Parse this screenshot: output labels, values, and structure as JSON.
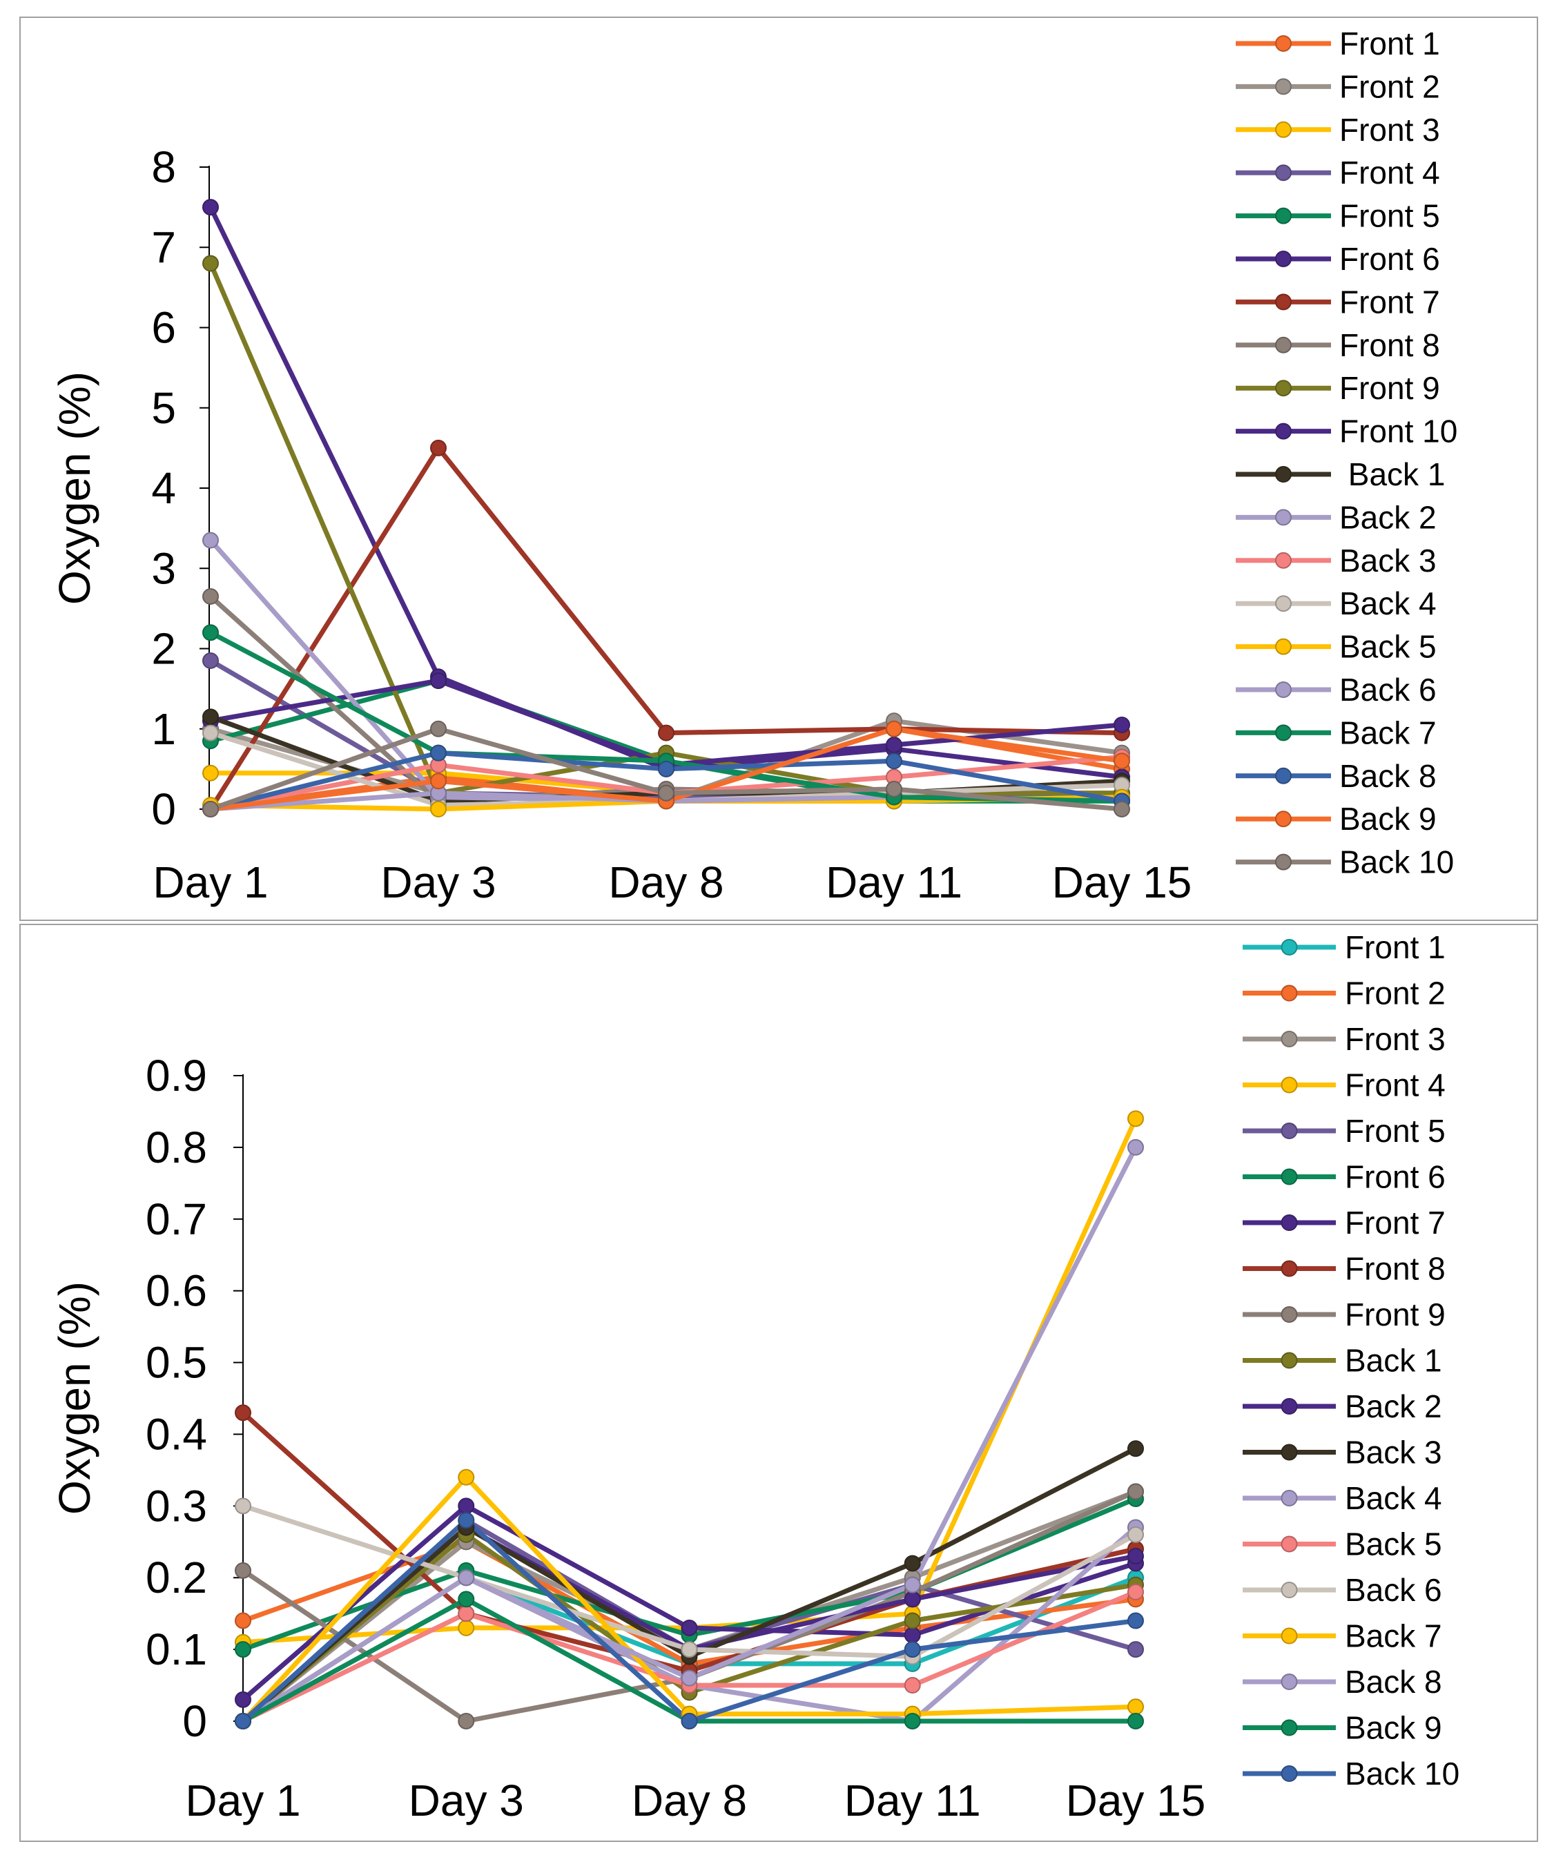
{
  "chart_data": [
    {
      "type": "line",
      "ylabel": "Oxygen (%)",
      "xlabel": "",
      "categories": [
        "Day 1",
        "Day 3",
        "Day 8",
        "Day 11",
        "Day 15"
      ],
      "ylim": [
        0,
        8
      ],
      "yticks": [
        "0",
        "1",
        "2",
        "3",
        "4",
        "5",
        "6",
        "7",
        "8"
      ],
      "legend_position": "right",
      "series": [
        {
          "name": "Front 1",
          "color": "#f46d2c",
          "values": [
            0.0,
            0.4,
            0.1,
            1.0,
            0.5
          ]
        },
        {
          "name": "Front 2",
          "color": "#9c928c",
          "values": [
            1.0,
            0.2,
            0.1,
            1.1,
            0.7
          ]
        },
        {
          "name": "Front 3",
          "color": "#ffc000",
          "values": [
            0.45,
            0.45,
            0.2,
            0.1,
            0.35
          ]
        },
        {
          "name": "Front 4",
          "color": "#6c5a9a",
          "values": [
            1.85,
            0.2,
            0.15,
            0.15,
            0.15
          ]
        },
        {
          "name": "Front 5",
          "color": "#0e8a5a",
          "values": [
            0.85,
            1.6,
            0.6,
            0.1,
            0.1
          ]
        },
        {
          "name": "Front 6",
          "color": "#4a2a86",
          "values": [
            7.5,
            1.65,
            0.5,
            0.75,
            0.4
          ]
        },
        {
          "name": "Front 7",
          "color": "#9e3526",
          "values": [
            0.0,
            4.5,
            0.95,
            1.0,
            0.95
          ]
        },
        {
          "name": "Front 8",
          "color": "#8c7f78",
          "values": [
            2.65,
            0.1,
            0.25,
            0.2,
            0.2
          ]
        },
        {
          "name": "Front 9",
          "color": "#7d7a24",
          "values": [
            6.8,
            0.2,
            0.7,
            0.2,
            0.2
          ]
        },
        {
          "name": "Front 10",
          "color": "#4a2a86",
          "values": [
            1.1,
            1.6,
            0.55,
            0.8,
            1.05
          ]
        },
        {
          "name": " Back 1",
          "color": "#3a3324",
          "values": [
            1.15,
            0.1,
            0.2,
            0.2,
            0.35
          ]
        },
        {
          "name": "Back 2",
          "color": "#a89cc8",
          "values": [
            3.35,
            0.15,
            0.1,
            0.1,
            0.15
          ]
        },
        {
          "name": "Back 3",
          "color": "#f48080",
          "values": [
            0.0,
            0.55,
            0.2,
            0.4,
            0.65
          ]
        },
        {
          "name": "Back 4",
          "color": "#cbc2ba",
          "values": [
            0.95,
            0.05,
            0.1,
            0.2,
            0.3
          ]
        },
        {
          "name": "Back 5",
          "color": "#ffc000",
          "values": [
            0.05,
            0.0,
            0.1,
            0.1,
            0.15
          ]
        },
        {
          "name": "Back 6",
          "color": "#a89cc8",
          "values": [
            0.0,
            0.2,
            0.1,
            0.15,
            0.1
          ]
        },
        {
          "name": "Back 7",
          "color": "#0e8a5a",
          "values": [
            2.2,
            0.7,
            0.6,
            0.15,
            0.1
          ]
        },
        {
          "name": "Back 8",
          "color": "#3a64a8",
          "values": [
            0.0,
            0.7,
            0.5,
            0.6,
            0.1
          ]
        },
        {
          "name": "Back 9",
          "color": "#f46d2c",
          "values": [
            0.0,
            0.35,
            0.1,
            1.0,
            0.6
          ]
        },
        {
          "name": "Back 10",
          "color": "#8c7f78",
          "values": [
            0.0,
            1.0,
            0.2,
            0.25,
            0.0
          ]
        }
      ]
    },
    {
      "type": "line",
      "ylabel": "Oxygen (%)",
      "xlabel": "",
      "categories": [
        "Day 1",
        "Day 3",
        "Day 8",
        "Day 11",
        "Day 15"
      ],
      "ylim": [
        0,
        0.9
      ],
      "yticks": [
        "0",
        "0.1",
        "0.2",
        "0.3",
        "0.4",
        "0.5",
        "0.6",
        "0.7",
        "0.8",
        "0.9"
      ],
      "legend_position": "right",
      "series": [
        {
          "name": "Front 1",
          "color": "#1fb8b8",
          "values": [
            0.0,
            0.2,
            0.08,
            0.08,
            0.2
          ]
        },
        {
          "name": "Front 2",
          "color": "#f46d2c",
          "values": [
            0.14,
            0.25,
            0.08,
            0.13,
            0.17
          ]
        },
        {
          "name": "Front 3",
          "color": "#9c928c",
          "values": [
            0.0,
            0.25,
            0.1,
            0.2,
            0.32
          ]
        },
        {
          "name": "Front 4",
          "color": "#ffc000",
          "values": [
            0.11,
            0.13,
            0.13,
            0.15,
            0.84
          ]
        },
        {
          "name": "Front 5",
          "color": "#6c5a9a",
          "values": [
            0.0,
            0.28,
            0.1,
            0.19,
            0.1
          ]
        },
        {
          "name": "Front 6",
          "color": "#0e8a5a",
          "values": [
            0.1,
            0.21,
            0.12,
            0.18,
            0.31
          ]
        },
        {
          "name": "Front 7",
          "color": "#4a2a86",
          "values": [
            0.03,
            0.3,
            0.13,
            0.12,
            0.22
          ]
        },
        {
          "name": "Front 8",
          "color": "#9e3526",
          "values": [
            0.43,
            0.15,
            0.07,
            0.17,
            0.24
          ]
        },
        {
          "name": "Front 9",
          "color": "#8c7f78",
          "values": [
            0.21,
            0.0,
            0.06,
            0.18,
            0.32
          ]
        },
        {
          "name": "Back 1",
          "color": "#7d7a24",
          "values": [
            0.0,
            0.26,
            0.04,
            0.14,
            0.19
          ]
        },
        {
          "name": "Back 2",
          "color": "#4a2a86",
          "values": [
            0.0,
            0.27,
            0.1,
            0.17,
            0.23
          ]
        },
        {
          "name": "Back 3",
          "color": "#3a3324",
          "values": [
            0.0,
            0.27,
            0.09,
            0.22,
            0.38
          ]
        },
        {
          "name": "Back 4",
          "color": "#a89cc8",
          "values": [
            0.0,
            0.2,
            0.05,
            0.0,
            0.27
          ]
        },
        {
          "name": "Back 5",
          "color": "#f48080",
          "values": [
            0.0,
            0.15,
            0.05,
            0.05,
            0.18
          ]
        },
        {
          "name": "Back 6",
          "color": "#cbc2ba",
          "values": [
            0.3,
            0.2,
            0.1,
            0.09,
            0.26
          ]
        },
        {
          "name": "Back 7",
          "color": "#ffc000",
          "values": [
            0.0,
            0.34,
            0.01,
            0.01,
            0.02
          ]
        },
        {
          "name": "Back 8",
          "color": "#a89cc8",
          "values": [
            0.0,
            0.2,
            0.06,
            0.19,
            0.8
          ]
        },
        {
          "name": "Back 9",
          "color": "#0e8a5a",
          "values": [
            0.0,
            0.17,
            0.0,
            0.0,
            0.0
          ]
        },
        {
          "name": "Back 10",
          "color": "#3a64a8",
          "values": [
            0.0,
            0.28,
            0.0,
            0.1,
            0.14
          ]
        }
      ]
    }
  ]
}
